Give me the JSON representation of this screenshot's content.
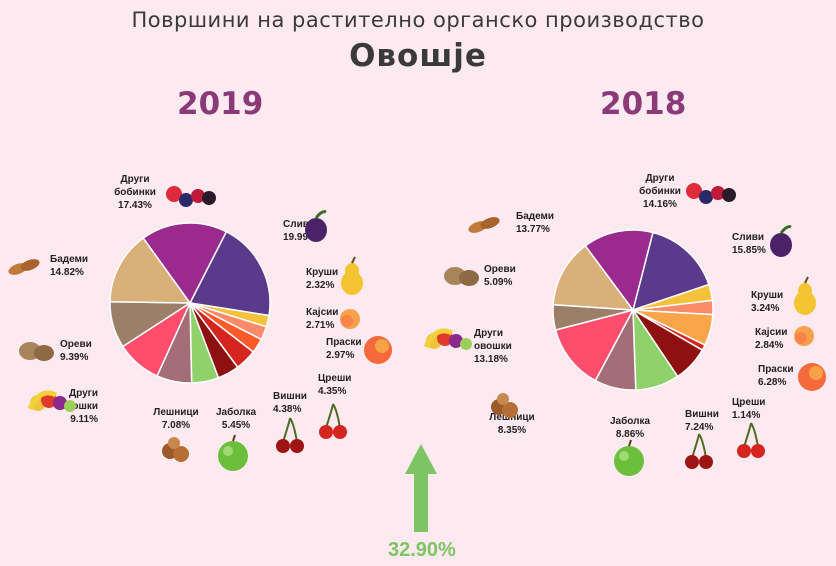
{
  "header": {
    "title": "Површини на растително органско производство",
    "subtitle": "Овошје"
  },
  "change": {
    "value": "32.90%",
    "direction": "up",
    "color": "#7cc464"
  },
  "chart_data": [
    {
      "type": "pie",
      "title": "2019",
      "slices": [
        {
          "name": "Сливи",
          "label": "19.99%",
          "value": 19.99,
          "color": "#5b3a8c",
          "icon": "plum-icon"
        },
        {
          "name": "Круши",
          "label": "2.32%",
          "value": 2.32,
          "color": "#f5c33b",
          "icon": "pear-icon"
        },
        {
          "name": "Кајсии",
          "label": "2.71%",
          "value": 2.71,
          "color": "#f98b6a",
          "icon": "apricot-icon"
        },
        {
          "name": "Праски",
          "label": "2.97%",
          "value": 2.97,
          "color": "#ff5a2a",
          "icon": "peach-icon"
        },
        {
          "name": "Цреши",
          "label": "4.35%",
          "value": 4.35,
          "color": "#d4251f",
          "icon": "cherries-icon"
        },
        {
          "name": "Вишни",
          "label": "4.38%",
          "value": 4.38,
          "color": "#8e1010",
          "icon": "sour-cherries-icon"
        },
        {
          "name": "Јаболка",
          "label": "5.45%",
          "value": 5.45,
          "color": "#8fd16a",
          "icon": "apple-icon"
        },
        {
          "name": "Лешници",
          "label": "7.08%",
          "value": 7.08,
          "color": "#a36e78",
          "icon": "hazelnut-icon"
        },
        {
          "name": "Други овошки",
          "label": "9.11%",
          "value": 9.11,
          "color": "#ff4d6d",
          "icon": "fruit-basket-icon"
        },
        {
          "name": "Ореви",
          "label": "9.39%",
          "value": 9.39,
          "color": "#9b7f68",
          "icon": "walnut-icon"
        },
        {
          "name": "Бадеми",
          "label": "14.82%",
          "value": 14.82,
          "color": "#d9b07a",
          "icon": "almond-icon"
        },
        {
          "name": "Други бобинки",
          "label": "17.43%",
          "value": 17.43,
          "color": "#9b2a8e",
          "icon": "berries-icon"
        }
      ]
    },
    {
      "type": "pie",
      "title": "2018",
      "slices": [
        {
          "name": "Сливи",
          "label": "15.85%",
          "value": 15.85,
          "color": "#5b3a8c",
          "icon": "plum-icon"
        },
        {
          "name": "Круши",
          "label": "3.24%",
          "value": 3.24,
          "color": "#f5c33b",
          "icon": "pear-icon"
        },
        {
          "name": "Кајсии",
          "label": "2.84%",
          "value": 2.84,
          "color": "#f98b6a",
          "icon": "apricot-icon"
        },
        {
          "name": "Праски",
          "label": "6.28%",
          "value": 6.28,
          "color": "#f9a54a",
          "icon": "peach-icon"
        },
        {
          "name": "Цреши",
          "label": "1.14%",
          "value": 1.14,
          "color": "#d4251f",
          "icon": "cherries-icon"
        },
        {
          "name": "Вишни",
          "label": "7.24%",
          "value": 7.24,
          "color": "#8e1010",
          "icon": "sour-cherries-icon"
        },
        {
          "name": "Јаболка",
          "label": "8.86%",
          "value": 8.86,
          "color": "#8fd16a",
          "icon": "apple-icon"
        },
        {
          "name": "Лешници",
          "label": "8.35%",
          "value": 8.35,
          "color": "#a36e78",
          "icon": "hazelnut-icon"
        },
        {
          "name": "Други овошки",
          "label": "13.18%",
          "value": 13.18,
          "color": "#ff4d6d",
          "icon": "fruit-basket-icon"
        },
        {
          "name": "Ореви",
          "label": "5.09%",
          "value": 5.09,
          "color": "#9b7f68",
          "icon": "walnut-icon"
        },
        {
          "name": "Бадеми",
          "label": "13.77%",
          "value": 13.77,
          "color": "#d9b07a",
          "icon": "almond-icon"
        },
        {
          "name": "Други бобинки",
          "label": "14.16%",
          "value": 14.16,
          "color": "#9b2a8e",
          "icon": "berries-icon"
        }
      ]
    }
  ]
}
